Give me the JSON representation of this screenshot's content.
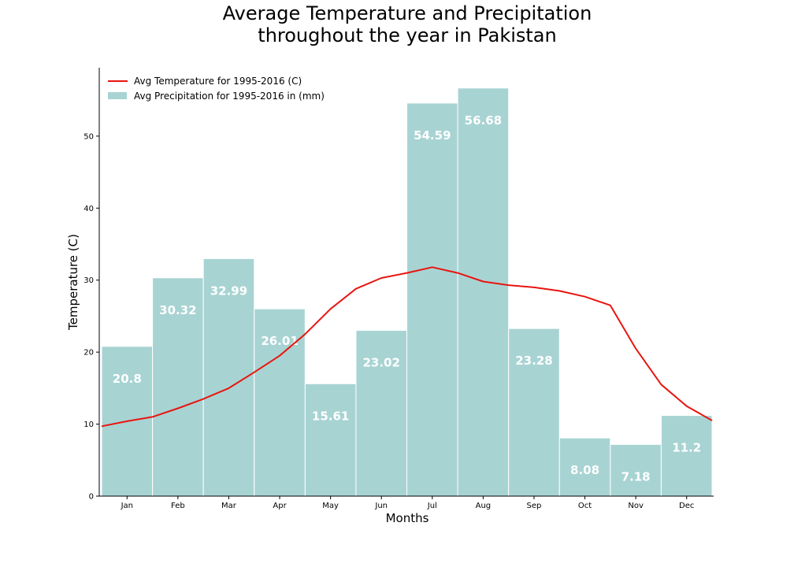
{
  "chart_data": {
    "type": "bar+line",
    "title_lines": [
      "Average Temperature and Precipitation",
      "throughout the year in Pakistan"
    ],
    "xlabel": "Months",
    "ylabel": "Temperature (C)",
    "ylim": [
      0,
      59.5
    ],
    "yticks": [
      0,
      10,
      20,
      30,
      40,
      50
    ],
    "categories": [
      "Jan",
      "Feb",
      "Mar",
      "Apr",
      "May",
      "Jun",
      "Jul",
      "Aug",
      "Sep",
      "Oct",
      "Nov",
      "Dec"
    ],
    "legend_position": "top-left",
    "series": [
      {
        "name": "Avg Precipitation for 1995-2016 in (mm)",
        "kind": "bar",
        "color": "#a8d3d3",
        "values": [
          20.8,
          30.32,
          32.99,
          26.01,
          15.61,
          23.02,
          54.59,
          56.68,
          23.28,
          8.08,
          7.18,
          11.2
        ],
        "labels": [
          "20.8",
          "30.32",
          "32.99",
          "26.01",
          "15.61",
          "23.02",
          "54.59",
          "56.68",
          "23.28",
          "8.08",
          "7.18",
          "11.2"
        ]
      },
      {
        "name": "Avg Temperature for 1995-2016 (C)",
        "kind": "line",
        "color": "#e8150f",
        "x": [
          0.0,
          0.5,
          1.0,
          1.5,
          2.0,
          2.5,
          3.0,
          3.5,
          4.0,
          4.5,
          5.0,
          5.5,
          6.0,
          6.5,
          7.0,
          7.5,
          8.0,
          8.5,
          9.0,
          9.5,
          10.0,
          10.5,
          11.0,
          11.5,
          12.0
        ],
        "values": [
          9.7,
          10.4,
          11.0,
          12.2,
          13.5,
          15.0,
          17.2,
          19.5,
          22.5,
          26.0,
          28.8,
          30.3,
          31.0,
          31.8,
          31.0,
          29.8,
          29.3,
          29.0,
          28.5,
          27.7,
          26.5,
          20.5,
          15.5,
          12.5,
          10.5
        ]
      }
    ]
  }
}
